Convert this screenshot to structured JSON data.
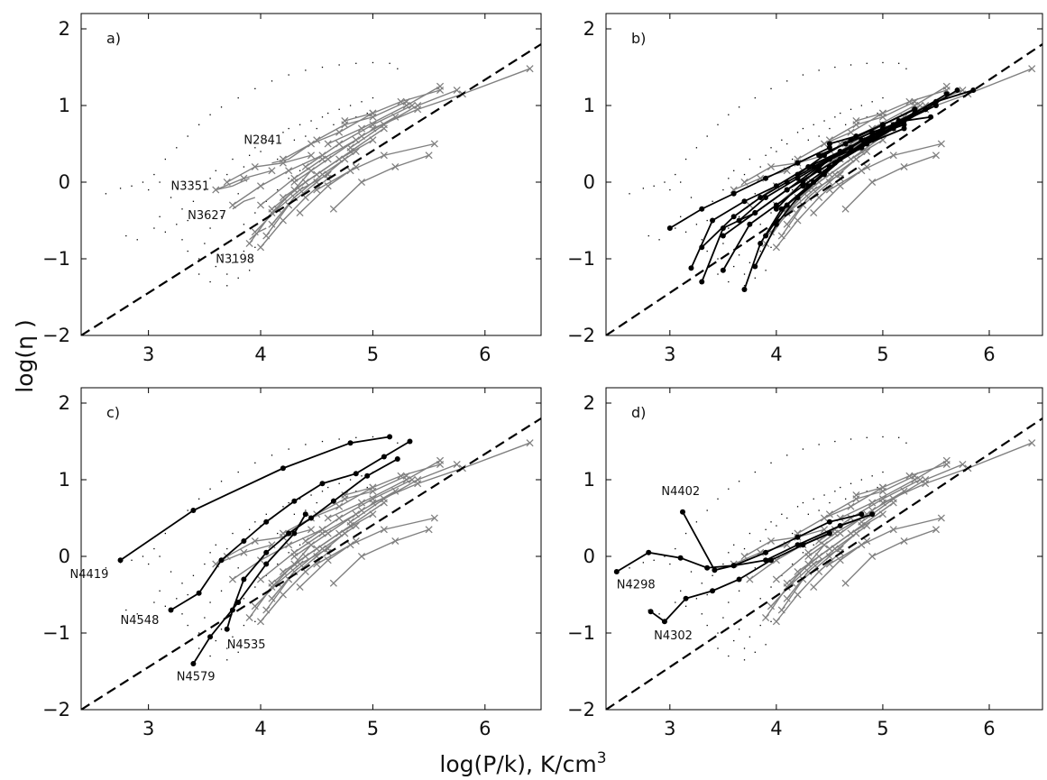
{
  "chart_data": {
    "type": "line",
    "xlabel": "log(P/k), K/cm",
    "xlabel_exponent": "3",
    "ylabel": "log(η )",
    "xlim": [
      2.4,
      6.5
    ],
    "ylim": [
      -2,
      2.2
    ],
    "xticks": [
      "3",
      "4",
      "5",
      "6"
    ],
    "yticks": [
      "2",
      "1",
      "0",
      "−1",
      "−2"
    ],
    "reference_line": {
      "style": "dashed",
      "color": "#000000",
      "x": [
        2.4,
        6.5
      ],
      "y": [
        -2.0,
        1.8
      ]
    },
    "colors": {
      "reference": "#000000",
      "comparison": "#808080",
      "highlighted": "#000000",
      "background_points": "#000000"
    },
    "background_points": [
      [
        2.62,
        -0.15
      ],
      [
        2.75,
        -0.08
      ],
      [
        2.85,
        -0.05
      ],
      [
        2.95,
        0.0
      ],
      [
        3.05,
        0.1
      ],
      [
        3.15,
        0.3
      ],
      [
        3.25,
        0.45
      ],
      [
        3.35,
        0.6
      ],
      [
        3.45,
        0.75
      ],
      [
        3.55,
        0.88
      ],
      [
        3.65,
        0.98
      ],
      [
        3.8,
        1.1
      ],
      [
        3.95,
        1.22
      ],
      [
        4.1,
        1.32
      ],
      [
        4.25,
        1.4
      ],
      [
        4.4,
        1.46
      ],
      [
        4.55,
        1.5
      ],
      [
        4.7,
        1.53
      ],
      [
        4.85,
        1.55
      ],
      [
        5.0,
        1.56
      ],
      [
        5.15,
        1.55
      ],
      [
        5.22,
        1.48
      ],
      [
        3.0,
        -0.1
      ],
      [
        3.1,
        0.0
      ],
      [
        3.2,
        -0.2
      ],
      [
        3.3,
        -0.35
      ],
      [
        3.1,
        -0.45
      ],
      [
        3.25,
        -0.55
      ],
      [
        3.4,
        -0.25
      ],
      [
        3.5,
        -0.1
      ],
      [
        3.55,
        0.05
      ],
      [
        3.6,
        0.15
      ],
      [
        3.7,
        0.1
      ],
      [
        3.75,
        0.3
      ],
      [
        3.8,
        -0.15
      ],
      [
        3.85,
        0.2
      ],
      [
        3.9,
        0.35
      ],
      [
        3.95,
        0.45
      ],
      [
        4.0,
        0.4
      ],
      [
        4.05,
        0.55
      ],
      [
        4.1,
        0.5
      ],
      [
        4.15,
        0.3
      ],
      [
        4.2,
        0.65
      ],
      [
        4.25,
        0.7
      ],
      [
        4.3,
        0.55
      ],
      [
        4.35,
        0.75
      ],
      [
        4.4,
        0.6
      ],
      [
        4.45,
        0.8
      ],
      [
        4.5,
        0.7
      ],
      [
        4.55,
        0.85
      ],
      [
        4.6,
        0.9
      ],
      [
        4.65,
        0.75
      ],
      [
        4.7,
        0.95
      ],
      [
        4.75,
        0.8
      ],
      [
        4.8,
        1.0
      ],
      [
        4.85,
        0.85
      ],
      [
        4.9,
        1.05
      ],
      [
        4.95,
        0.9
      ],
      [
        5.0,
        1.1
      ],
      [
        3.3,
        -0.75
      ],
      [
        3.35,
        -0.9
      ],
      [
        3.45,
        -1.0
      ],
      [
        3.5,
        -0.8
      ],
      [
        3.6,
        -1.1
      ],
      [
        3.65,
        -0.95
      ],
      [
        3.7,
        -1.2
      ],
      [
        3.75,
        -1.05
      ],
      [
        3.85,
        -0.9
      ],
      [
        3.9,
        -1.15
      ],
      [
        3.95,
        -0.85
      ],
      [
        3.55,
        -0.6
      ],
      [
        3.65,
        -0.45
      ],
      [
        3.75,
        -0.3
      ],
      [
        3.85,
        -0.55
      ],
      [
        3.95,
        -0.4
      ],
      [
        4.05,
        -0.25
      ],
      [
        4.15,
        -0.1
      ],
      [
        4.25,
        0.05
      ],
      [
        4.35,
        0.15
      ],
      [
        4.45,
        0.25
      ],
      [
        4.55,
        0.35
      ],
      [
        4.65,
        0.45
      ],
      [
        3.45,
        -1.2
      ],
      [
        3.55,
        -1.3
      ],
      [
        3.7,
        -1.35
      ],
      [
        3.8,
        -1.25
      ],
      [
        2.8,
        -0.7
      ],
      [
        2.9,
        -0.75
      ],
      [
        3.05,
        -0.6
      ],
      [
        3.15,
        -0.65
      ],
      [
        3.35,
        -0.5
      ]
    ],
    "comparison_series": [
      {
        "x": [
          3.9,
          4.1,
          4.3,
          4.45
        ],
        "y": [
          -0.8,
          -0.4,
          -0.1,
          0.15
        ]
      },
      {
        "x": [
          4.0,
          4.2,
          4.4,
          4.6
        ],
        "y": [
          -0.85,
          -0.5,
          -0.2,
          0.05
        ]
      },
      {
        "x": [
          4.05,
          4.25,
          4.5,
          4.75
        ],
        "y": [
          -0.7,
          -0.3,
          0.0,
          0.3
        ]
      },
      {
        "x": [
          4.1,
          4.3,
          4.55,
          4.85
        ],
        "y": [
          -0.55,
          -0.2,
          0.1,
          0.4
        ]
      },
      {
        "x": [
          4.1,
          4.4,
          4.7,
          5.0
        ],
        "y": [
          -0.35,
          0.0,
          0.3,
          0.55
        ]
      },
      {
        "x": [
          4.2,
          4.5,
          4.8,
          5.1
        ],
        "y": [
          -0.2,
          0.1,
          0.4,
          0.7
        ]
      },
      {
        "x": [
          4.3,
          4.6,
          4.9,
          5.2
        ],
        "y": [
          0.0,
          0.3,
          0.6,
          0.85
        ]
      },
      {
        "x": [
          4.4,
          4.7,
          5.0,
          5.35
        ],
        "y": [
          0.2,
          0.5,
          0.75,
          1.0
        ]
      },
      {
        "x": [
          4.6,
          4.9,
          5.3,
          5.6
        ],
        "y": [
          0.5,
          0.7,
          1.0,
          1.25
        ]
      },
      {
        "x": [
          4.8,
          5.1,
          5.4,
          5.75
        ],
        "y": [
          0.45,
          0.75,
          1.0,
          1.2
        ]
      },
      {
        "x": [
          5.0,
          5.4,
          5.8,
          6.4
        ],
        "y": [
          0.7,
          0.95,
          1.15,
          1.48
        ]
      },
      {
        "x": [
          4.5,
          4.8,
          5.1,
          5.55
        ],
        "y": [
          -0.1,
          0.15,
          0.35,
          0.5
        ]
      },
      {
        "x": [
          4.65,
          4.9,
          5.2,
          5.5
        ],
        "y": [
          -0.35,
          0.0,
          0.2,
          0.35
        ]
      },
      {
        "x": [
          4.35,
          4.6,
          4.85
        ],
        "y": [
          -0.4,
          -0.05,
          0.2
        ]
      },
      {
        "x": [
          3.7,
          3.95,
          4.2,
          4.45
        ],
        "y": [
          0.0,
          0.2,
          0.25,
          0.35
        ]
      },
      {
        "x": [
          3.6,
          3.85,
          4.1
        ],
        "y": [
          -0.1,
          0.05,
          0.15
        ]
      },
      {
        "x": [
          3.75,
          4.0,
          4.25,
          4.55
        ],
        "y": [
          -0.3,
          -0.05,
          0.15,
          0.35
        ]
      },
      {
        "x": [
          3.95,
          4.15,
          4.35,
          4.6
        ],
        "y": [
          -0.65,
          -0.35,
          -0.1,
          0.1
        ]
      },
      {
        "x": [
          4.2,
          4.45,
          4.7,
          5.0
        ],
        "y": [
          0.3,
          0.5,
          0.65,
          0.9
        ]
      },
      {
        "x": [
          4.5,
          4.75,
          5.0,
          5.3
        ],
        "y": [
          0.55,
          0.75,
          0.85,
          1.05
        ]
      },
      {
        "x": [
          4.75,
          5.0,
          5.25,
          5.6
        ],
        "y": [
          0.8,
          0.9,
          1.05,
          1.2
        ]
      },
      {
        "x": [
          4.0,
          4.3,
          4.55,
          4.85
        ],
        "y": [
          -0.3,
          0.05,
          0.3,
          0.55
        ]
      }
    ],
    "panels": [
      {
        "label": "a)",
        "galaxies": [
          {
            "name": "N2841",
            "x": [
              4.1,
              4.25,
              4.45
            ],
            "y": [
              0.25,
              0.3,
              0.5
            ],
            "label_at": [
              3.85,
              0.5
            ]
          },
          {
            "name": "N3351",
            "x": [
              3.6,
              3.75,
              3.9
            ],
            "y": [
              -0.1,
              -0.05,
              0.05
            ],
            "label_at": [
              3.2,
              -0.1
            ]
          },
          {
            "name": "N3627",
            "x": [
              3.75,
              3.85,
              3.95
            ],
            "y": [
              -0.35,
              -0.25,
              -0.2
            ],
            "label_at": [
              3.35,
              -0.48
            ]
          },
          {
            "name": "N3198",
            "x": [
              3.9,
              3.98,
              4.05
            ],
            "y": [
              -0.75,
              -0.65,
              -0.6
            ],
            "label_at": [
              3.6,
              -1.05
            ]
          }
        ],
        "highlighted_series": []
      },
      {
        "label": "b)",
        "galaxies": [],
        "highlighted_series": [
          {
            "x": [
              3.0,
              3.3,
              3.6,
              3.9,
              4.2,
              4.5
            ],
            "y": [
              -0.6,
              -0.35,
              -0.15,
              0.05,
              0.25,
              0.45
            ]
          },
          {
            "x": [
              3.2,
              3.4,
              3.7,
              4.0,
              4.3,
              4.6,
              4.9
            ],
            "y": [
              -1.12,
              -0.5,
              -0.25,
              -0.05,
              0.2,
              0.4,
              0.6
            ]
          },
          {
            "x": [
              3.3,
              3.5,
              3.8,
              4.1,
              4.4,
              4.7,
              5.0
            ],
            "y": [
              -1.3,
              -0.6,
              -0.4,
              -0.1,
              0.15,
              0.4,
              0.65
            ]
          },
          {
            "x": [
              3.3,
              3.6,
              3.85,
              4.1,
              4.35,
              4.6,
              4.9,
              5.2
            ],
            "y": [
              -0.85,
              -0.45,
              -0.2,
              0.0,
              0.2,
              0.4,
              0.6,
              0.75
            ]
          },
          {
            "x": [
              3.5,
              3.75,
              4.0,
              4.25,
              4.5,
              4.8,
              5.1,
              5.4
            ],
            "y": [
              -1.15,
              -0.55,
              -0.3,
              -0.05,
              0.2,
              0.45,
              0.7,
              0.95
            ]
          },
          {
            "x": [
              3.7,
              3.85,
              4.05,
              4.3,
              4.55,
              4.85,
              5.15,
              5.5,
              5.85
            ],
            "y": [
              -1.4,
              -0.8,
              -0.35,
              -0.05,
              0.25,
              0.55,
              0.8,
              1.05,
              1.2
            ]
          },
          {
            "x": [
              3.8,
              4.0,
              4.2,
              4.45,
              4.7,
              5.0,
              5.3,
              5.6
            ],
            "y": [
              -1.1,
              -0.55,
              -0.2,
              0.1,
              0.4,
              0.65,
              0.9,
              1.15
            ]
          },
          {
            "x": [
              3.9,
              4.1,
              4.35,
              4.6,
              4.9,
              5.2,
              5.5
            ],
            "y": [
              -0.7,
              -0.3,
              0.0,
              0.3,
              0.55,
              0.8,
              1.0
            ]
          },
          {
            "x": [
              4.0,
              4.25,
              4.5,
              4.8,
              5.1,
              5.4,
              5.7
            ],
            "y": [
              -0.35,
              0.0,
              0.3,
              0.55,
              0.75,
              0.95,
              1.2
            ]
          },
          {
            "x": [
              4.2,
              4.45,
              4.7,
              5.0,
              5.3
            ],
            "y": [
              0.1,
              0.35,
              0.55,
              0.75,
              0.95
            ]
          },
          {
            "x": [
              4.4,
              4.65,
              4.9,
              5.2,
              5.45
            ],
            "y": [
              0.35,
              0.5,
              0.65,
              0.8,
              0.85
            ]
          },
          {
            "x": [
              4.5,
              4.75,
              5.0,
              5.3
            ],
            "y": [
              0.5,
              0.6,
              0.75,
              0.95
            ]
          },
          {
            "x": [
              3.5,
              3.8,
              4.1,
              4.4,
              4.7,
              5.0
            ],
            "y": [
              -0.7,
              -0.4,
              -0.1,
              0.2,
              0.45,
              0.7
            ]
          },
          {
            "x": [
              3.65,
              3.9,
              4.2,
              4.5,
              4.85,
              5.2
            ],
            "y": [
              -0.5,
              -0.2,
              0.05,
              0.3,
              0.5,
              0.7
            ]
          }
        ]
      },
      {
        "label": "c)",
        "galaxies": [
          {
            "name": "N4419",
            "x": [
              2.75,
              3.4,
              4.2,
              4.8,
              5.15
            ],
            "y": [
              -0.05,
              0.6,
              1.15,
              1.48,
              1.56
            ],
            "label_at": [
              2.3,
              -0.28
            ]
          },
          {
            "name": "N4548",
            "x": [
              3.2,
              3.45,
              3.65,
              3.85,
              4.05,
              4.3,
              4.55,
              4.85,
              5.1,
              5.33
            ],
            "y": [
              -0.7,
              -0.48,
              -0.05,
              0.2,
              0.45,
              0.72,
              0.95,
              1.08,
              1.3,
              1.5
            ],
            "label_at": [
              2.75,
              -0.88
            ]
          },
          {
            "name": "N4535",
            "x": [
              3.7,
              3.75,
              3.85,
              4.05,
              4.25,
              4.45,
              4.65,
              4.95,
              5.22
            ],
            "y": [
              -0.95,
              -0.7,
              -0.3,
              0.05,
              0.3,
              0.5,
              0.72,
              1.05,
              1.27
            ],
            "label_at": [
              3.7,
              -1.2
            ]
          },
          {
            "name": "N4579",
            "x": [
              3.4,
              3.55,
              3.8,
              4.05,
              4.3,
              4.4
            ],
            "y": [
              -1.4,
              -1.05,
              -0.6,
              -0.1,
              0.3,
              0.55
            ],
            "label_at": [
              3.25,
              -1.62
            ]
          }
        ],
        "highlighted_series": []
      },
      {
        "label": "d)",
        "galaxies": [
          {
            "name": "N4402",
            "x": [
              3.12,
              3.42,
              3.6,
              3.9,
              4.2,
              4.6,
              4.9
            ],
            "y": [
              0.58,
              -0.18,
              -0.12,
              -0.05,
              0.15,
              0.4,
              0.55
            ],
            "label_at": [
              2.92,
              0.8
            ]
          },
          {
            "name": "N4298",
            "x": [
              2.5,
              2.8,
              3.1,
              3.35,
              3.6,
              3.9,
              4.2,
              4.5,
              4.8
            ],
            "y": [
              -0.2,
              0.05,
              -0.02,
              -0.15,
              -0.12,
              0.05,
              0.25,
              0.45,
              0.55
            ],
            "label_at": [
              2.5,
              -0.42
            ]
          },
          {
            "name": "N4302",
            "x": [
              2.82,
              2.95,
              3.15,
              3.4,
              3.65,
              3.95,
              4.25,
              4.5
            ],
            "y": [
              -0.72,
              -0.85,
              -0.55,
              -0.45,
              -0.3,
              -0.05,
              0.15,
              0.3
            ],
            "label_at": [
              2.85,
              -1.08
            ]
          }
        ],
        "highlighted_series": []
      }
    ]
  }
}
